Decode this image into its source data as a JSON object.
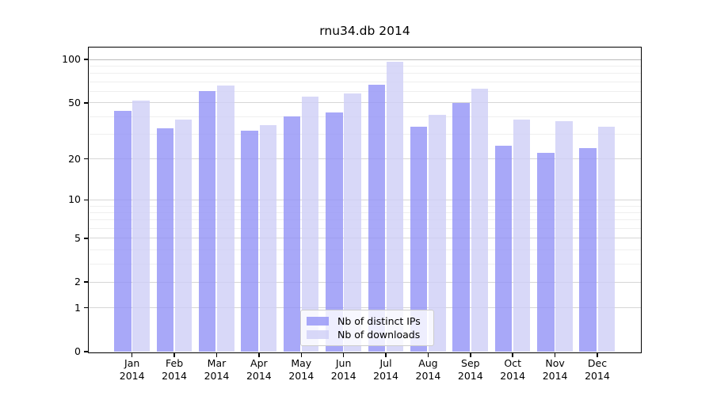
{
  "chart_data": {
    "type": "bar",
    "title": "rnu34.db 2014",
    "categories": [
      "Jan",
      "Feb",
      "Mar",
      "Apr",
      "May",
      "Jun",
      "Jul",
      "Aug",
      "Sep",
      "Oct",
      "Nov",
      "Dec"
    ],
    "category_year": "2014",
    "series": [
      {
        "name": "Nb of distinct IPs",
        "color": "#9292f6",
        "opacity": 0.8,
        "values": [
          44,
          33,
          60,
          32,
          40,
          43,
          67,
          34,
          50,
          25,
          22,
          24
        ]
      },
      {
        "name": "Nb of downloads",
        "color": "#cecef6",
        "opacity": 0.8,
        "values": [
          52,
          38,
          66,
          35,
          55,
          58,
          97,
          41,
          63,
          38,
          37,
          34
        ]
      }
    ],
    "yscale": "log1p",
    "ylim": [
      0,
      119
    ],
    "y_ticks": [
      100,
      50,
      20,
      10,
      5,
      2,
      1,
      0
    ],
    "y_minor_ticks": [
      90,
      80,
      70,
      60,
      40,
      30,
      9,
      8,
      7,
      6,
      4,
      3
    ],
    "grid": true,
    "legend_position": "lower center"
  },
  "colors": {
    "grid_major": "#d6d6d6",
    "grid_major_top": "#bbbbbb",
    "grid_minor": "#efefef",
    "axis": "#000000",
    "text": "#000000",
    "legend_border": "#cccccc"
  }
}
